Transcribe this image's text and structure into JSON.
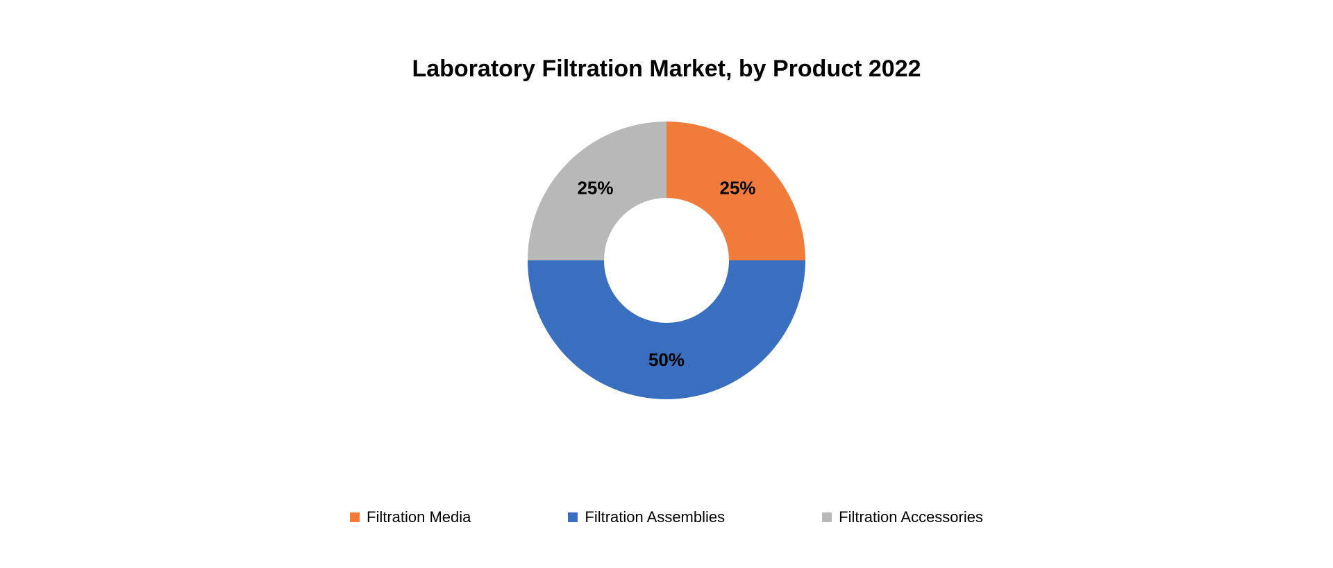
{
  "chart": {
    "type": "donut",
    "title": "Laboratory Filtration Market, by Product 2022",
    "title_fontsize": 34,
    "title_fontweight": 600,
    "background_color": "#ffffff",
    "outer_radius": 200,
    "inner_radius": 90,
    "center_color": "#ffffff",
    "slice_label_fontsize": 26,
    "slice_label_fontweight": 700,
    "slice_label_color": "#000000",
    "legend_fontsize": 22,
    "legend_swatch_size": 14,
    "slices": [
      {
        "name": "Filtration Media",
        "value": 25,
        "label": "25%",
        "color": "#f07b3a"
      },
      {
        "name": "Filtration Assemblies",
        "value": 50,
        "label": "50%",
        "color": "#3a6fbf"
      },
      {
        "name": "Filtration Accessories",
        "value": 25,
        "label": "25%",
        "color": "#b8b8b8"
      }
    ]
  }
}
